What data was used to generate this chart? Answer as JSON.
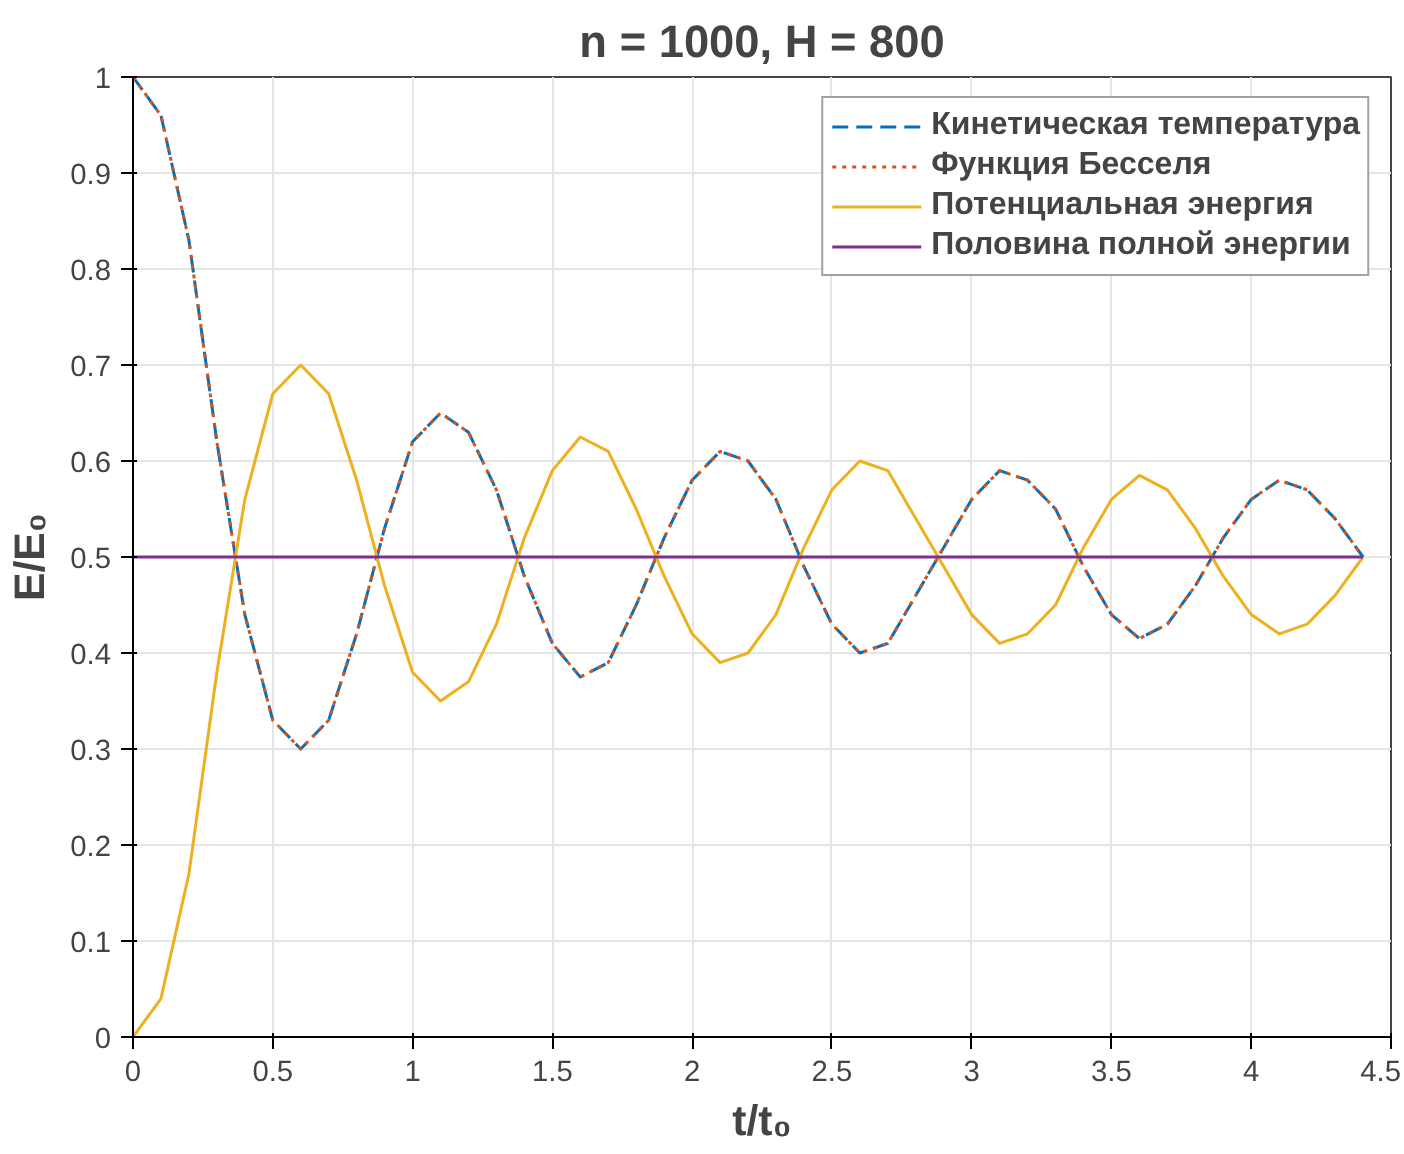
{
  "chart_data": {
    "type": "line",
    "title": "n = 1000, H = 800",
    "xlabel": "t/t₀",
    "ylabel": "E/E₀",
    "x": [
      0,
      0.1,
      0.2,
      0.3,
      0.4,
      0.5,
      0.6,
      0.7,
      0.8,
      0.9,
      1.0,
      1.1,
      1.2,
      1.3,
      1.4,
      1.5,
      1.6,
      1.7,
      1.8,
      1.9,
      2.0,
      2.1,
      2.2,
      2.3,
      2.4,
      2.5,
      2.6,
      2.7,
      2.8,
      2.9,
      3.0,
      3.1,
      3.2,
      3.3,
      3.4,
      3.5,
      3.6,
      3.7,
      3.8,
      3.9,
      4.0,
      4.1,
      4.2,
      4.3,
      4.4
    ],
    "series": [
      {
        "name": "Кинетическая температура",
        "color": "#0072bd",
        "line_style": "dashed",
        "values": [
          1,
          0.96,
          0.83,
          0.62,
          0.44,
          0.33,
          0.3,
          0.33,
          0.42,
          0.53,
          0.62,
          0.65,
          0.63,
          0.57,
          0.48,
          0.41,
          0.375,
          0.39,
          0.45,
          0.52,
          0.58,
          0.61,
          0.6,
          0.56,
          0.49,
          0.43,
          0.4,
          0.41,
          0.46,
          0.51,
          0.56,
          0.59,
          0.58,
          0.55,
          0.49,
          0.44,
          0.415,
          0.43,
          0.47,
          0.52,
          0.56,
          0.58,
          0.57,
          0.54,
          0.5
        ]
      },
      {
        "name": "Функция Бесселя",
        "color": "#d95319",
        "line_style": "dotted",
        "values": [
          1,
          0.96,
          0.83,
          0.62,
          0.44,
          0.33,
          0.3,
          0.33,
          0.42,
          0.53,
          0.62,
          0.65,
          0.63,
          0.57,
          0.48,
          0.41,
          0.375,
          0.39,
          0.45,
          0.52,
          0.58,
          0.61,
          0.6,
          0.56,
          0.49,
          0.43,
          0.4,
          0.41,
          0.46,
          0.51,
          0.56,
          0.59,
          0.58,
          0.55,
          0.49,
          0.44,
          0.415,
          0.43,
          0.47,
          0.52,
          0.56,
          0.58,
          0.57,
          0.54,
          0.5
        ]
      },
      {
        "name": "Потенциальная энергия",
        "color": "#edb120",
        "line_style": "solid",
        "values": [
          0,
          0.04,
          0.17,
          0.38,
          0.56,
          0.67,
          0.7,
          0.67,
          0.58,
          0.47,
          0.38,
          0.35,
          0.37,
          0.43,
          0.52,
          0.59,
          0.625,
          0.61,
          0.55,
          0.48,
          0.42,
          0.39,
          0.4,
          0.44,
          0.51,
          0.57,
          0.6,
          0.59,
          0.54,
          0.49,
          0.44,
          0.41,
          0.42,
          0.45,
          0.51,
          0.56,
          0.585,
          0.57,
          0.53,
          0.48,
          0.44,
          0.42,
          0.43,
          0.46,
          0.5
        ]
      },
      {
        "name": "Половина полной энергии",
        "color": "#7e2f8e",
        "line_style": "solid",
        "x": [
          0,
          4.4
        ],
        "values": [
          0.5,
          0.5
        ]
      }
    ],
    "xlim": [
      0,
      4.5
    ],
    "ylim": [
      0,
      1
    ],
    "xticks": [
      0,
      0.5,
      1,
      1.5,
      2,
      2.5,
      3,
      3.5,
      4,
      4.5
    ],
    "yticks": [
      0,
      0.1,
      0.2,
      0.3,
      0.4,
      0.5,
      0.6,
      0.7,
      0.8,
      0.9,
      1
    ],
    "grid": true,
    "legend": "top right"
  }
}
